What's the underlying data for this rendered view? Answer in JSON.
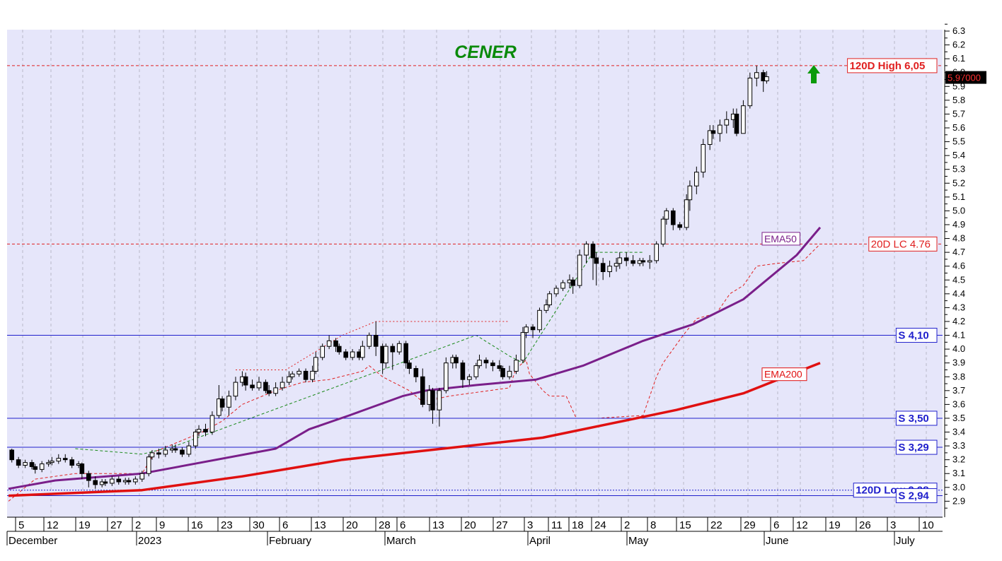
{
  "chart_data": {
    "type": "candlestick",
    "title": "CENER",
    "y_axis": {
      "range": [
        2.8,
        6.35
      ],
      "ticks": [
        "6.3",
        "6.2",
        "6.1",
        "6.0",
        "5.9",
        "5.8",
        "5.7",
        "5.6",
        "5.5",
        "5.4",
        "5.3",
        "5.2",
        "5.1",
        "5.0",
        "4.9",
        "4.8",
        "4.7",
        "4.6",
        "4.5",
        "4.4",
        "4.3",
        "4.2",
        "4.1",
        "4.0",
        "3.9",
        "3.8",
        "3.7",
        "3.6",
        "3.5",
        "3.4",
        "3.3",
        "3.2",
        "3.1",
        "3.0",
        "2.9"
      ]
    },
    "x_axis": {
      "day_ticks": [
        "5",
        "12",
        "19",
        "27",
        "2",
        "9",
        "16",
        "23",
        "30",
        "6",
        "13",
        "20",
        "28",
        "6",
        "13",
        "20",
        "27",
        "3",
        "11",
        "18",
        "24",
        "2",
        "8",
        "15",
        "22",
        "29",
        "6",
        "12",
        "19",
        "26",
        "3",
        "10"
      ],
      "month_labels": [
        "December",
        "2023",
        "February",
        "March",
        "April",
        "May",
        "June",
        "July"
      ]
    },
    "last_price": "5.97000",
    "colors": {
      "background": "#e6e6fa",
      "grid": "#b8b8c8",
      "support": "#2020cc",
      "resistance": "#e02020",
      "ema50": "#7a1f8a",
      "ema200": "#e01010",
      "title": "#0a8a0a",
      "arrow": "#0a9a0a"
    },
    "levels": [
      {
        "label": "120D High 6,05",
        "value": 6.05,
        "kind": "high"
      },
      {
        "label": "20D LC 4.76",
        "value": 4.76,
        "kind": "lc"
      },
      {
        "label": "S 4,10",
        "value": 4.1,
        "kind": "support"
      },
      {
        "label": "S 3,50",
        "value": 3.5,
        "kind": "support"
      },
      {
        "label": "S 3,29",
        "value": 3.29,
        "kind": "support"
      },
      {
        "label": "120D Low 2,98",
        "value": 2.98,
        "kind": "low"
      },
      {
        "label": "S 2,94",
        "value": 2.94,
        "kind": "support"
      }
    ],
    "series": [
      {
        "name": "EMA50",
        "points": [
          [
            0,
            2.99
          ],
          [
            14,
            3.05
          ],
          [
            40,
            3.1
          ],
          [
            80,
            3.28
          ],
          [
            90,
            3.42
          ],
          [
            102,
            3.52
          ],
          [
            118,
            3.66
          ],
          [
            125,
            3.7
          ],
          [
            140,
            3.74
          ],
          [
            158,
            3.78
          ],
          [
            172,
            3.88
          ],
          [
            190,
            4.06
          ],
          [
            205,
            4.18
          ],
          [
            220,
            4.36
          ],
          [
            236,
            4.68
          ],
          [
            243,
            4.88
          ]
        ]
      },
      {
        "name": "EMA200",
        "points": [
          [
            0,
            2.94
          ],
          [
            40,
            2.98
          ],
          [
            70,
            3.08
          ],
          [
            100,
            3.2
          ],
          [
            130,
            3.28
          ],
          [
            160,
            3.36
          ],
          [
            180,
            3.46
          ],
          [
            200,
            3.56
          ],
          [
            220,
            3.68
          ],
          [
            243,
            3.9
          ]
        ]
      }
    ],
    "candles": [
      [
        1,
        3.27,
        3.2,
        3.28,
        3.18
      ],
      [
        3,
        3.2,
        3.16,
        3.22,
        3.14
      ],
      [
        5,
        3.16,
        3.18,
        3.2,
        3.14
      ],
      [
        7,
        3.18,
        3.15,
        3.2,
        3.13
      ],
      [
        8,
        3.15,
        3.13,
        3.17,
        3.1
      ],
      [
        10,
        3.13,
        3.17,
        3.19,
        3.11
      ],
      [
        12,
        3.17,
        3.18,
        3.2,
        3.15
      ],
      [
        13,
        3.18,
        3.19,
        3.22,
        3.16
      ],
      [
        15,
        3.19,
        3.21,
        3.24,
        3.17
      ],
      [
        17,
        3.21,
        3.2,
        3.24,
        3.18
      ],
      [
        19,
        3.2,
        3.16,
        3.22,
        3.14
      ],
      [
        21,
        3.16,
        3.17,
        3.19,
        3.14
      ],
      [
        22,
        3.17,
        3.1,
        3.18,
        3.06
      ],
      [
        24,
        3.1,
        3.05,
        3.12,
        3.0
      ],
      [
        26,
        3.05,
        3.02,
        3.08,
        2.99
      ],
      [
        28,
        3.02,
        3.04,
        3.06,
        3.0
      ],
      [
        29,
        3.04,
        3.03,
        3.06,
        3.01
      ],
      [
        31,
        3.03,
        3.06,
        3.08,
        3.01
      ],
      [
        33,
        3.06,
        3.04,
        3.08,
        3.02
      ],
      [
        35,
        3.04,
        3.05,
        3.07,
        3.02
      ],
      [
        36,
        3.05,
        3.04,
        3.07,
        3.02
      ],
      [
        38,
        3.04,
        3.06,
        3.08,
        3.02
      ],
      [
        40,
        3.06,
        3.1,
        3.12,
        3.04
      ],
      [
        42,
        3.1,
        3.22,
        3.24,
        3.08
      ],
      [
        43,
        3.22,
        3.25,
        3.27,
        3.2
      ],
      [
        45,
        3.25,
        3.24,
        3.28,
        3.21
      ],
      [
        47,
        3.24,
        3.27,
        3.3,
        3.22
      ],
      [
        49,
        3.27,
        3.28,
        3.31,
        3.25
      ],
      [
        50,
        3.28,
        3.27,
        3.31,
        3.25
      ],
      [
        52,
        3.27,
        3.24,
        3.29,
        3.22
      ],
      [
        54,
        3.24,
        3.3,
        3.33,
        3.22
      ],
      [
        56,
        3.3,
        3.4,
        3.42,
        3.28
      ],
      [
        57,
        3.4,
        3.42,
        3.45,
        3.37
      ],
      [
        59,
        3.42,
        3.4,
        3.46,
        3.37
      ],
      [
        61,
        3.4,
        3.52,
        3.55,
        3.38
      ],
      [
        63,
        3.52,
        3.64,
        3.74,
        3.5
      ],
      [
        64,
        3.64,
        3.58,
        3.66,
        3.55
      ],
      [
        66,
        3.58,
        3.66,
        3.7,
        3.52
      ],
      [
        68,
        3.66,
        3.76,
        3.8,
        3.63
      ],
      [
        70,
        3.76,
        3.8,
        3.84,
        3.73
      ],
      [
        71,
        3.8,
        3.74,
        3.83,
        3.7
      ],
      [
        73,
        3.74,
        3.72,
        3.78,
        3.7
      ],
      [
        75,
        3.72,
        3.76,
        3.8,
        3.7
      ],
      [
        77,
        3.76,
        3.7,
        3.78,
        3.68
      ],
      [
        78,
        3.7,
        3.68,
        3.74,
        3.66
      ],
      [
        80,
        3.68,
        3.72,
        3.76,
        3.66
      ],
      [
        82,
        3.72,
        3.76,
        3.8,
        3.7
      ],
      [
        84,
        3.76,
        3.8,
        3.84,
        3.74
      ],
      [
        85,
        3.8,
        3.82,
        3.84,
        3.78
      ],
      [
        87,
        3.82,
        3.84,
        3.86,
        3.8
      ],
      [
        89,
        3.84,
        3.78,
        3.86,
        3.76
      ],
      [
        91,
        3.78,
        3.84,
        3.88,
        3.76
      ],
      [
        92,
        3.84,
        3.94,
        3.98,
        3.82
      ],
      [
        94,
        3.94,
        4.02,
        4.04,
        3.92
      ],
      [
        96,
        4.02,
        4.06,
        4.1,
        4.0
      ],
      [
        98,
        4.06,
        4.02,
        4.08,
        3.98
      ],
      [
        99,
        4.02,
        3.98,
        4.04,
        3.96
      ],
      [
        101,
        3.98,
        3.94,
        4.0,
        3.92
      ],
      [
        103,
        3.94,
        3.98,
        4.0,
        3.92
      ],
      [
        105,
        3.98,
        3.94,
        4.0,
        3.92
      ],
      [
        106,
        3.94,
        4.02,
        4.06,
        3.92
      ],
      [
        108,
        4.02,
        4.1,
        4.12,
        4.0
      ],
      [
        110,
        4.1,
        4.02,
        4.2,
        3.95
      ],
      [
        112,
        4.02,
        3.9,
        4.04,
        3.82
      ],
      [
        113,
        3.9,
        4.02,
        4.04,
        3.86
      ],
      [
        115,
        4.02,
        3.98,
        4.04,
        3.85
      ],
      [
        117,
        3.98,
        4.04,
        4.06,
        3.96
      ],
      [
        119,
        4.04,
        3.9,
        4.06,
        3.86
      ],
      [
        120,
        3.9,
        3.86,
        3.92,
        3.82
      ],
      [
        122,
        3.86,
        3.8,
        3.88,
        3.76
      ],
      [
        124,
        3.8,
        3.6,
        3.86,
        3.58
      ],
      [
        126,
        3.6,
        3.7,
        3.74,
        3.55
      ],
      [
        127,
        3.7,
        3.56,
        3.72,
        3.46
      ],
      [
        129,
        3.56,
        3.7,
        3.72,
        3.44
      ],
      [
        131,
        3.7,
        3.9,
        3.94,
        3.68
      ],
      [
        133,
        3.9,
        3.94,
        3.96,
        3.86
      ],
      [
        134,
        3.94,
        3.9,
        3.96,
        3.86
      ],
      [
        136,
        3.9,
        3.78,
        3.92,
        3.72
      ],
      [
        138,
        3.78,
        3.8,
        3.82,
        3.74
      ],
      [
        140,
        3.8,
        3.88,
        3.9,
        3.78
      ],
      [
        141,
        3.88,
        3.92,
        3.96,
        3.86
      ],
      [
        143,
        3.92,
        3.9,
        3.94,
        3.86
      ],
      [
        145,
        3.9,
        3.88,
        3.92,
        3.84
      ],
      [
        147,
        3.88,
        3.86,
        3.92,
        3.84
      ],
      [
        148,
        3.86,
        3.8,
        3.88,
        3.78
      ],
      [
        150,
        3.8,
        3.84,
        3.88,
        3.78
      ],
      [
        152,
        3.84,
        3.92,
        3.96,
        3.82
      ],
      [
        154,
        3.92,
        4.12,
        4.16,
        3.9
      ],
      [
        155,
        4.12,
        4.16,
        4.18,
        4.08
      ],
      [
        157,
        4.16,
        4.14,
        4.18,
        4.08
      ],
      [
        159,
        4.14,
        4.28,
        4.3,
        4.12
      ],
      [
        161,
        4.28,
        4.32,
        4.36,
        4.26
      ],
      [
        162,
        4.32,
        4.4,
        4.42,
        4.3
      ],
      [
        164,
        4.4,
        4.44,
        4.46,
        4.38
      ],
      [
        166,
        4.44,
        4.48,
        4.5,
        4.42
      ],
      [
        168,
        4.48,
        4.5,
        4.54,
        4.44
      ],
      [
        169,
        4.5,
        4.46,
        4.52,
        4.4
      ],
      [
        171,
        4.46,
        4.68,
        4.72,
        4.44
      ],
      [
        173,
        4.68,
        4.76,
        4.78,
        4.62
      ],
      [
        175,
        4.76,
        4.66,
        4.78,
        4.5
      ],
      [
        176,
        4.66,
        4.62,
        4.7,
        4.46
      ],
      [
        178,
        4.62,
        4.56,
        4.66,
        4.5
      ],
      [
        180,
        4.56,
        4.6,
        4.64,
        4.52
      ],
      [
        182,
        4.6,
        4.62,
        4.66,
        4.56
      ],
      [
        183,
        4.62,
        4.66,
        4.7,
        4.58
      ],
      [
        185,
        4.66,
        4.64,
        4.7,
        4.6
      ],
      [
        187,
        4.64,
        4.62,
        4.68,
        4.6
      ],
      [
        189,
        4.62,
        4.64,
        4.66,
        4.6
      ],
      [
        190,
        4.64,
        4.63,
        4.66,
        4.6
      ],
      [
        192,
        4.63,
        4.64,
        4.68,
        4.58
      ],
      [
        194,
        4.64,
        4.76,
        4.78,
        4.62
      ],
      [
        196,
        4.76,
        4.94,
        4.96,
        4.74
      ],
      [
        197,
        4.94,
        5.0,
        5.02,
        4.9
      ],
      [
        199,
        5.0,
        4.9,
        5.02,
        4.86
      ],
      [
        201,
        4.9,
        4.88,
        4.92,
        4.86
      ],
      [
        203,
        4.88,
        5.08,
        5.12,
        4.86
      ],
      [
        204,
        5.08,
        5.18,
        5.22,
        5.0
      ],
      [
        206,
        5.18,
        5.28,
        5.32,
        5.12
      ],
      [
        208,
        5.28,
        5.48,
        5.52,
        5.24
      ],
      [
        210,
        5.48,
        5.58,
        5.62,
        5.44
      ],
      [
        211,
        5.58,
        5.56,
        5.62,
        5.52
      ],
      [
        213,
        5.56,
        5.62,
        5.66,
        5.5
      ],
      [
        215,
        5.62,
        5.66,
        5.72,
        5.56
      ],
      [
        217,
        5.66,
        5.7,
        5.74,
        5.6
      ],
      [
        218,
        5.7,
        5.56,
        5.74,
        5.54
      ],
      [
        220,
        5.56,
        5.76,
        5.8,
        5.7
      ],
      [
        222,
        5.76,
        5.96,
        6.0,
        5.74
      ],
      [
        224,
        5.96,
        6.0,
        6.05,
        5.9
      ],
      [
        226,
        6.0,
        5.94,
        6.02,
        5.86
      ],
      [
        227,
        5.94,
        5.97,
        6.01,
        5.92
      ]
    ],
    "stops": [
      {
        "dash": "4,3",
        "color": "#e02020",
        "points": [
          [
            0,
            2.9
          ],
          [
            8,
            3.06
          ],
          [
            20,
            3.1
          ],
          [
            27,
            3.1
          ],
          [
            40,
            3.1
          ],
          [
            44,
            3.26
          ],
          [
            54,
            3.36
          ],
          [
            58,
            3.4
          ],
          [
            64,
            3.48
          ],
          [
            70,
            3.6
          ],
          [
            80,
            3.7
          ],
          [
            88,
            3.76
          ],
          [
            96,
            3.78
          ],
          [
            106,
            3.84
          ],
          [
            108,
            3.88
          ],
          [
            112,
            3.8
          ],
          [
            120,
            3.7
          ],
          [
            124,
            3.62
          ],
          [
            132,
            3.66
          ],
          [
            150,
            3.72
          ],
          [
            152,
            3.86
          ],
          [
            155,
            3.92
          ],
          [
            156,
            3.82
          ],
          [
            160,
            3.7
          ],
          [
            162,
            3.66
          ],
          [
            167,
            3.66
          ],
          [
            170,
            3.5
          ],
          [
            176,
            3.5
          ],
          [
            190,
            3.52
          ],
          [
            194,
            3.8
          ],
          [
            196,
            3.9
          ],
          [
            202,
            4.1
          ],
          [
            206,
            4.22
          ],
          [
            212,
            4.26
          ],
          [
            216,
            4.4
          ],
          [
            220,
            4.46
          ],
          [
            224,
            4.6
          ],
          [
            230,
            4.62
          ],
          [
            238,
            4.64
          ],
          [
            243,
            4.76
          ]
        ]
      },
      {
        "dash": "2,3",
        "color": "#e02020",
        "points": [
          [
            68,
            3.85
          ],
          [
            83,
            3.85
          ],
          [
            100,
            4.1
          ],
          [
            110,
            4.2
          ],
          [
            130,
            4.2
          ],
          [
            150,
            4.2
          ]
        ]
      },
      {
        "dash": "4,3",
        "color": "#1a8a1a",
        "points": [
          [
            20,
            3.28
          ],
          [
            40,
            3.24
          ],
          [
            50,
            3.3
          ],
          [
            140,
            4.1
          ],
          [
            150,
            3.95
          ],
          [
            154,
            3.9
          ],
          [
            175,
            4.7
          ],
          [
            190,
            4.7
          ]
        ]
      }
    ]
  }
}
